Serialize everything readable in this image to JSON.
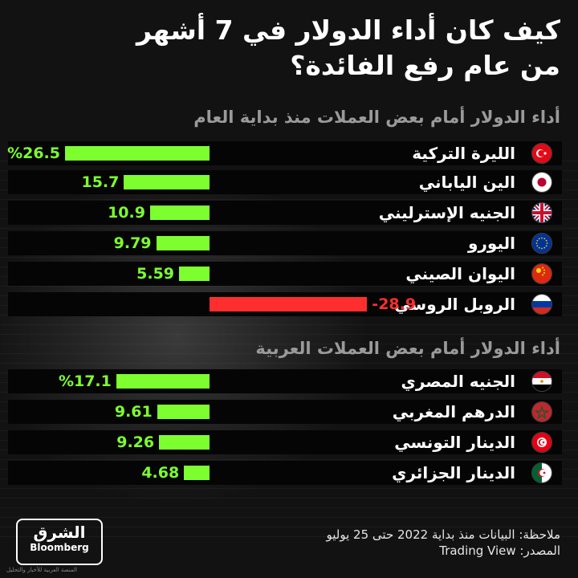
{
  "title_line1": "كيف كان أداء الدولار في 7 أشهر",
  "title_line2": "من عام رفع الفائدة؟",
  "colors": {
    "positive": "#7dff2f",
    "negative": "#ff2e2e",
    "background": "#0d0d0d",
    "subtitle": "#9a9a9a"
  },
  "chart_data": [
    {
      "type": "bar",
      "orientation": "horizontal",
      "title": "أداء الدولار أمام بعض العملات منذ بداية العام",
      "categories": [
        "الليرة التركية",
        "الين الياباني",
        "الجنيه الإسترليني",
        "اليورو",
        "اليوان الصيني",
        "الروبل الروسي"
      ],
      "values": [
        26.5,
        15.7,
        10.9,
        9.79,
        5.59,
        -28.9
      ],
      "value_labels": [
        "%26.5",
        "15.7",
        "10.9",
        "9.79",
        "5.59",
        "28.9-"
      ],
      "flags": [
        "turkey",
        "japan",
        "uk",
        "eu",
        "china",
        "russia"
      ],
      "xlim": [
        -28.9,
        26.5
      ]
    },
    {
      "type": "bar",
      "orientation": "horizontal",
      "title": "أداء الدولار أمام بعض العملات العربية",
      "categories": [
        "الجنيه المصري",
        "الدرهم المغربي",
        "الدينار التونسي",
        "الدينار الجزائري"
      ],
      "values": [
        17.1,
        9.61,
        9.26,
        4.68
      ],
      "value_labels": [
        "%17.1",
        "9.61",
        "9.26",
        "4.68"
      ],
      "flags": [
        "egypt",
        "morocco",
        "tunisia",
        "algeria"
      ],
      "xlim": [
        -28.9,
        26.5
      ]
    }
  ],
  "footer": {
    "note": "ملاحظة: البيانات منذ بداية 2022 حتى 25 يوليو",
    "source": "المصدر: Trading View",
    "logo_main": "الشرق",
    "logo_sub": "Bloomberg",
    "logo_caption": "المنصة العربية للأخبار والتحليل"
  }
}
